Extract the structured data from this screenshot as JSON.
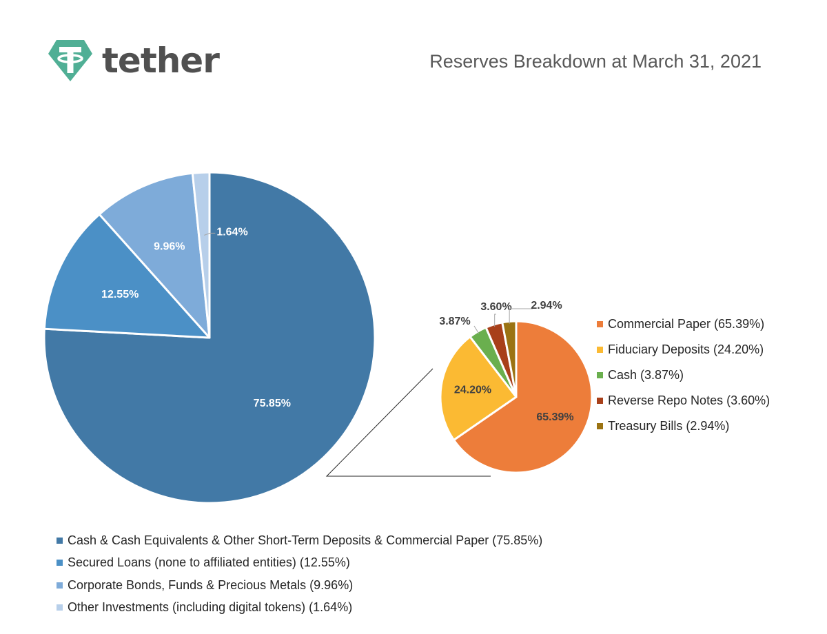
{
  "header": {
    "logo_text": "tether",
    "brand_color": "#50AF95",
    "title": "Reserves Breakdown at March 31, 2021"
  },
  "chart_data": [
    {
      "type": "pie",
      "title": "",
      "slices": [
        {
          "label": "Cash & Cash Equivalents & Other Short-Term Deposits & Commercial Paper (75.85%)",
          "value": 75.85,
          "value_label": "75.85%",
          "color": "#4279A6"
        },
        {
          "label": "Secured Loans (none to affiliated entities) (12.55%)",
          "value": 12.55,
          "value_label": "12.55%",
          "color": "#4B90C6"
        },
        {
          "label": "Corporate Bonds, Funds & Precious Metals (9.96%)",
          "value": 9.96,
          "value_label": "9.96%",
          "color": "#7EABD9"
        },
        {
          "label": "Other Investments (including digital tokens) (1.64%)",
          "value": 1.64,
          "value_label": "1.64%",
          "color": "#B7CFEA"
        }
      ],
      "legend_position": "bottom-left"
    },
    {
      "type": "pie",
      "title": "",
      "slices": [
        {
          "label": "Commercial Paper (65.39%)",
          "value": 65.39,
          "value_label": "65.39%",
          "color": "#ED7D3A"
        },
        {
          "label": "Fiduciary Deposits (24.20%)",
          "value": 24.2,
          "value_label": "24.20%",
          "color": "#FBBA33"
        },
        {
          "label": "Cash (3.87%)",
          "value": 3.87,
          "value_label": "3.87%",
          "color": "#6AAF4E"
        },
        {
          "label": "Reverse Repo Notes (3.60%)",
          "value": 3.6,
          "value_label": "3.60%",
          "color": "#A8401A"
        },
        {
          "label": "Treasury Bills (2.94%)",
          "value": 2.94,
          "value_label": "2.94%",
          "color": "#9B7313"
        }
      ],
      "legend_position": "right"
    }
  ]
}
